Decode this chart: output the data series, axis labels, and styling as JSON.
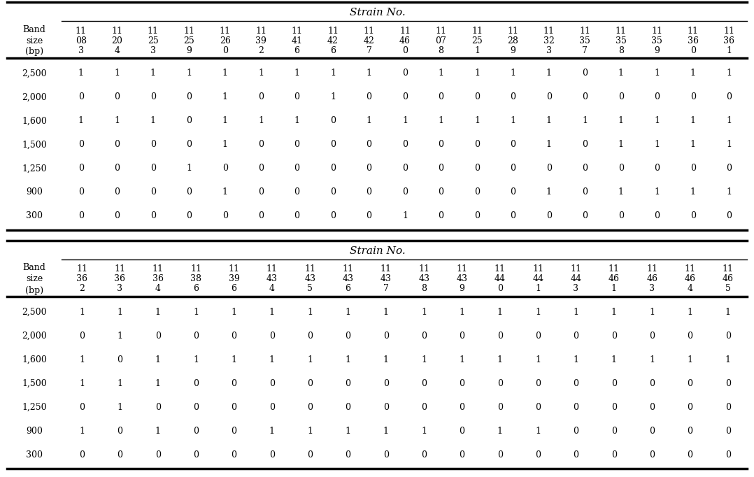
{
  "title": "Strain No.",
  "header1_row1": [
    "11",
    "11",
    "11",
    "11",
    "11",
    "11",
    "11",
    "11",
    "11",
    "11",
    "11",
    "11",
    "11",
    "11",
    "11",
    "11",
    "11",
    "11",
    "11"
  ],
  "header1_row2": [
    "08",
    "20",
    "25",
    "25",
    "26",
    "39",
    "41",
    "42",
    "42",
    "46",
    "07",
    "25",
    "28",
    "32",
    "35",
    "35",
    "35",
    "36",
    "36"
  ],
  "header1_row3": [
    "3",
    "4",
    "3",
    "9",
    "0",
    "2",
    "6",
    "6",
    "7",
    "0",
    "8",
    "1",
    "9",
    "3",
    "7",
    "8",
    "9",
    "0",
    "1"
  ],
  "header2_row1": [
    "11",
    "11",
    "11",
    "11",
    "11",
    "11",
    "11",
    "11",
    "11",
    "11",
    "11",
    "11",
    "11",
    "11",
    "11",
    "11",
    "11",
    "11"
  ],
  "header2_row2": [
    "36",
    "36",
    "36",
    "38",
    "39",
    "43",
    "43",
    "43",
    "43",
    "43",
    "43",
    "44",
    "44",
    "44",
    "46",
    "46",
    "46",
    "46"
  ],
  "header2_row3": [
    "2",
    "3",
    "4",
    "6",
    "6",
    "4",
    "5",
    "6",
    "7",
    "8",
    "9",
    "0",
    "1",
    "3",
    "1",
    "3",
    "4",
    "5"
  ],
  "band_sizes": [
    "2,500",
    "2,000",
    "1,600",
    "1,500",
    "1,250",
    "900",
    "300"
  ],
  "table1_data": [
    [
      1,
      1,
      1,
      1,
      1,
      1,
      1,
      1,
      1,
      0,
      1,
      1,
      1,
      1,
      0,
      1,
      1,
      1,
      1
    ],
    [
      0,
      0,
      0,
      0,
      1,
      0,
      0,
      1,
      0,
      0,
      0,
      0,
      0,
      0,
      0,
      0,
      0,
      0,
      0
    ],
    [
      1,
      1,
      1,
      0,
      1,
      1,
      1,
      0,
      1,
      1,
      1,
      1,
      1,
      1,
      1,
      1,
      1,
      1,
      1
    ],
    [
      0,
      0,
      0,
      0,
      1,
      0,
      0,
      0,
      0,
      0,
      0,
      0,
      0,
      1,
      0,
      1,
      1,
      1,
      1
    ],
    [
      0,
      0,
      0,
      1,
      0,
      0,
      0,
      0,
      0,
      0,
      0,
      0,
      0,
      0,
      0,
      0,
      0,
      0,
      0
    ],
    [
      0,
      0,
      0,
      0,
      1,
      0,
      0,
      0,
      0,
      0,
      0,
      0,
      0,
      1,
      0,
      1,
      1,
      1,
      1
    ],
    [
      0,
      0,
      0,
      0,
      0,
      0,
      0,
      0,
      0,
      1,
      0,
      0,
      0,
      0,
      0,
      0,
      0,
      0,
      0
    ]
  ],
  "table2_data": [
    [
      1,
      1,
      1,
      1,
      1,
      1,
      1,
      1,
      1,
      1,
      1,
      1,
      1,
      1,
      1,
      1,
      1,
      1
    ],
    [
      0,
      1,
      0,
      0,
      0,
      0,
      0,
      0,
      0,
      0,
      0,
      0,
      0,
      0,
      0,
      0,
      0,
      0
    ],
    [
      1,
      0,
      1,
      1,
      1,
      1,
      1,
      1,
      1,
      1,
      1,
      1,
      1,
      1,
      1,
      1,
      1,
      1
    ],
    [
      1,
      1,
      1,
      0,
      0,
      0,
      0,
      0,
      0,
      0,
      0,
      0,
      0,
      0,
      0,
      0,
      0,
      0
    ],
    [
      0,
      1,
      0,
      0,
      0,
      0,
      0,
      0,
      0,
      0,
      0,
      0,
      0,
      0,
      0,
      0,
      0,
      0
    ],
    [
      1,
      0,
      1,
      0,
      0,
      1,
      1,
      1,
      1,
      1,
      0,
      1,
      1,
      0,
      0,
      0,
      0,
      0
    ],
    [
      0,
      0,
      0,
      0,
      0,
      0,
      0,
      0,
      0,
      0,
      0,
      0,
      0,
      0,
      0,
      0,
      0,
      0
    ]
  ],
  "bg_color": "#ffffff",
  "text_color": "#000000",
  "font_size": 9.0,
  "title_font_size": 11.0
}
